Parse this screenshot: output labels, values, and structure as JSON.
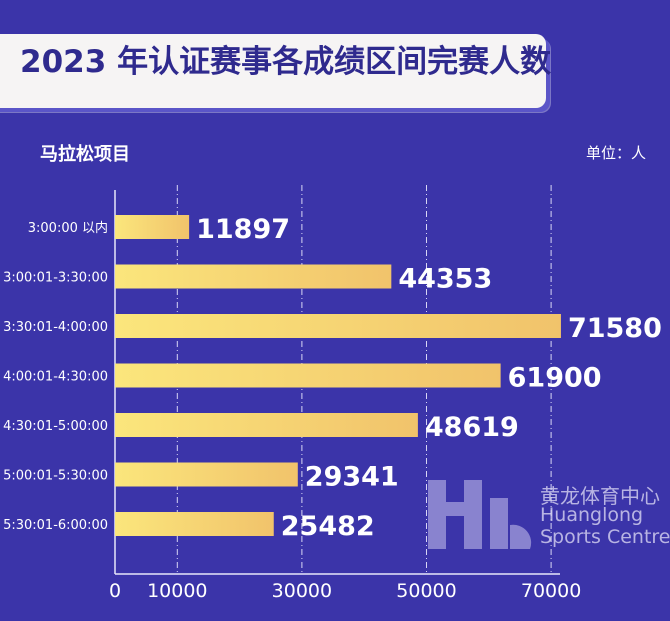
{
  "title": "2023 年认证赛事各成绩区间完赛人数",
  "subtitle": "马拉松项目",
  "unit_label": "单位：人",
  "colors": {
    "background": "#3b34a9",
    "bar_start": "#f9e27a",
    "bar_end": "#f2c66a",
    "title_text": "#2f2a8e"
  },
  "chart_data": {
    "type": "bar",
    "orientation": "horizontal",
    "title": "2023 年认证赛事各成绩区间完赛人数",
    "categories": [
      "3:00:00 以内",
      "3:00:01-3:30:00",
      "3:30:01-4:00:00",
      "4:00:01-4:30:00",
      "4:30:01-5:00:00",
      "5:00:01-5:30:00",
      "5:30:01-6:00:00"
    ],
    "values": [
      11897,
      44353,
      71580,
      61900,
      48619,
      29341,
      25482
    ],
    "xticks": [
      0,
      10000,
      30000,
      50000,
      70000
    ],
    "xlim": [
      0,
      75000
    ],
    "grid": "vertical dashed",
    "data_labels": true
  },
  "watermark_logo": {
    "cn": "黄龙体育中心",
    "en_line1": "Huanglong",
    "en_line2": "Sports Centre"
  }
}
